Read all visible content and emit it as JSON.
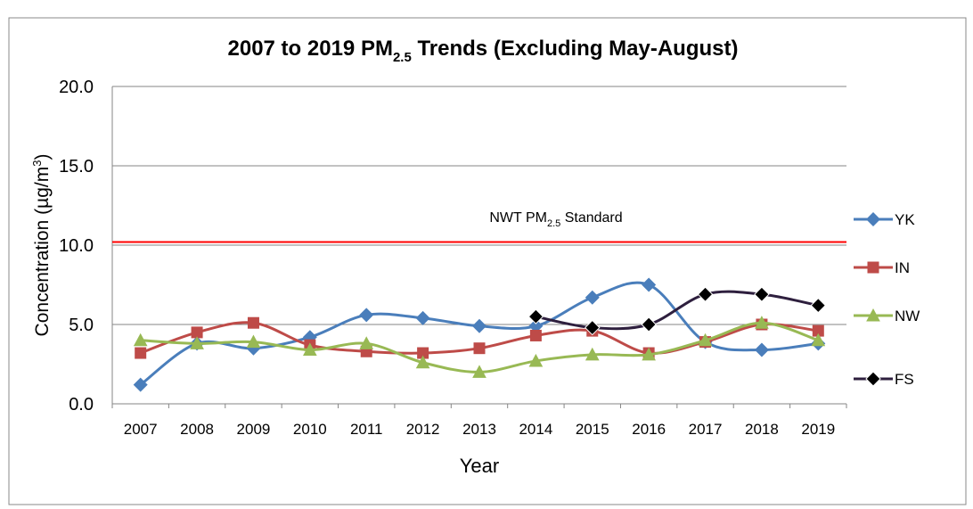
{
  "chart_data": {
    "type": "line",
    "title": [
      "2007 to 2019 PM",
      "2.5",
      " Trends (Excluding May-August)"
    ],
    "y_label": [
      "Concentration (µg/m",
      "3",
      ")"
    ],
    "x_label": "Year",
    "annotation": {
      "text": [
        "NWT PM",
        "2.5",
        " Standard"
      ],
      "value": 10.2,
      "color": "#ff0000"
    },
    "categories": [
      "2007",
      "2008",
      "2009",
      "2010",
      "2011",
      "2012",
      "2013",
      "2014",
      "2015",
      "2016",
      "2017",
      "2018",
      "2019"
    ],
    "series": [
      {
        "name": "YK",
        "color": "#4a7ebb",
        "marker": "diamond",
        "values": [
          1.2,
          3.8,
          3.5,
          4.2,
          5.6,
          5.4,
          4.9,
          4.9,
          6.7,
          7.5,
          3.9,
          3.4,
          3.8
        ]
      },
      {
        "name": "IN",
        "color": "#be4b48",
        "marker": "square",
        "values": [
          3.2,
          4.5,
          5.1,
          3.7,
          3.3,
          3.2,
          3.5,
          4.3,
          4.6,
          3.2,
          3.9,
          5.0,
          4.6
        ]
      },
      {
        "name": "NW",
        "color": "#98b954",
        "marker": "triangle",
        "values": [
          4.0,
          3.8,
          3.9,
          3.4,
          3.8,
          2.6,
          2.0,
          2.7,
          3.1,
          3.1,
          4.0,
          5.1,
          4.0
        ]
      },
      {
        "name": "FS",
        "color": "#2e1f3e",
        "marker": "diamond",
        "values": [
          null,
          null,
          null,
          null,
          null,
          null,
          null,
          5.5,
          4.8,
          5.0,
          6.9,
          6.9,
          6.2
        ]
      }
    ],
    "ylim": [
      0,
      20
    ],
    "yticks": [
      {
        "value": 0,
        "label": "0.0"
      },
      {
        "value": 5,
        "label": "5.0"
      },
      {
        "value": 10,
        "label": "10.0"
      },
      {
        "value": 15,
        "label": "15.0"
      },
      {
        "value": 20,
        "label": "20.0"
      }
    ],
    "grid": true,
    "smooth": true,
    "legend": "right"
  }
}
